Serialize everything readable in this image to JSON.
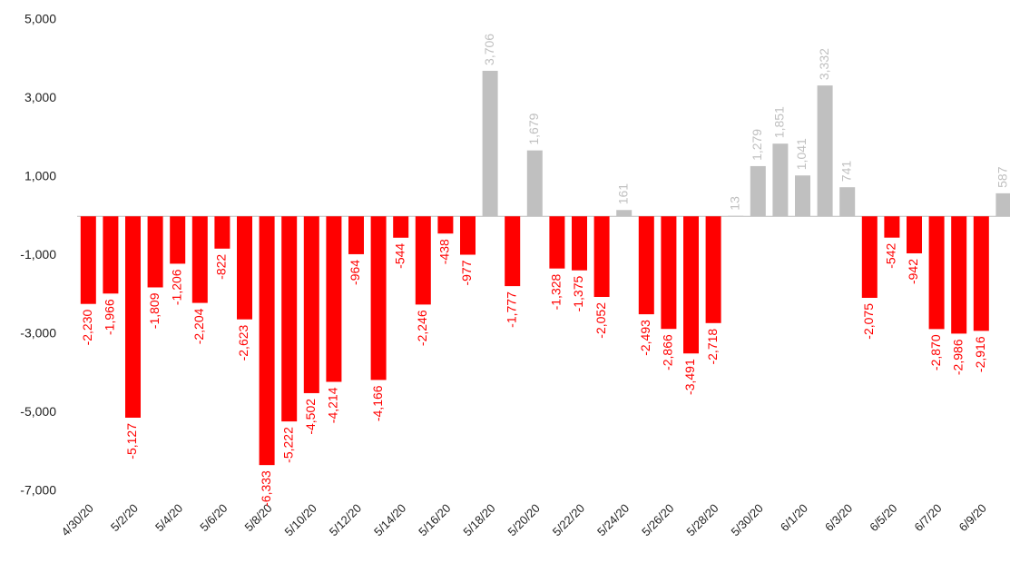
{
  "chart_data": {
    "type": "bar",
    "categories": [
      "4/30/20",
      null,
      "5/2/20",
      null,
      "5/4/20",
      null,
      "5/6/20",
      null,
      "5/8/20",
      null,
      "5/10/20",
      null,
      "5/12/20",
      null,
      "5/14/20",
      null,
      "5/16/20",
      null,
      "5/18/20",
      null,
      "5/20/20",
      null,
      "5/22/20",
      null,
      "5/24/20",
      null,
      "5/26/20",
      null,
      "5/28/20",
      null,
      "5/30/20",
      null,
      "6/1/20",
      null,
      "6/3/20",
      null,
      "6/5/20",
      null,
      "6/7/20",
      null,
      "6/9/20",
      null
    ],
    "values": [
      -2230,
      -1966,
      -5127,
      -1809,
      -1206,
      -2204,
      -822,
      -2623,
      -6333,
      -5222,
      -4502,
      -4214,
      -964,
      -4166,
      -544,
      -2246,
      -438,
      -977,
      3706,
      -1777,
      1679,
      -1328,
      -1375,
      -2052,
      161,
      -2493,
      -2866,
      -3491,
      -2718,
      13,
      1279,
      1851,
      1041,
      3332,
      741,
      -2075,
      -542,
      -942,
      -2870,
      -2986,
      -2916,
      587
    ],
    "value_labels": [
      "-2,230",
      "-1,966",
      "-5,127",
      "-1,809",
      "-1,206",
      "-2,204",
      "-822",
      "-2,623",
      "-6,333",
      "-5,222",
      "-4,502",
      "-4,214",
      "-964",
      "-4,166",
      "-544",
      "-2,246",
      "-438",
      "-977",
      "3,706",
      "-1,777",
      "1,679",
      "-1,328",
      "-1,375",
      "-2,052",
      "161",
      "-2,493",
      "-2,866",
      "-3,491",
      "-2,718",
      "13",
      "1,279",
      "1,851",
      "1,041",
      "3,332",
      "741",
      "-2,075",
      "-542",
      "-942",
      "-2,870",
      "-2,986",
      "-2,916",
      "587"
    ],
    "positive_color": "#c0c0c0",
    "negative_color": "#ff0000",
    "ylim": [
      -7000,
      5000
    ],
    "yticks": [
      {
        "value": -7000,
        "label": "-7,000"
      },
      {
        "value": -5000,
        "label": "-5,000"
      },
      {
        "value": -3000,
        "label": "-3,000"
      },
      {
        "value": -1000,
        "label": "-1,000"
      },
      {
        "value": 1000,
        "label": "1,000"
      },
      {
        "value": 3000,
        "label": "3,000"
      },
      {
        "value": 5000,
        "label": "5,000"
      }
    ],
    "grid": false
  }
}
